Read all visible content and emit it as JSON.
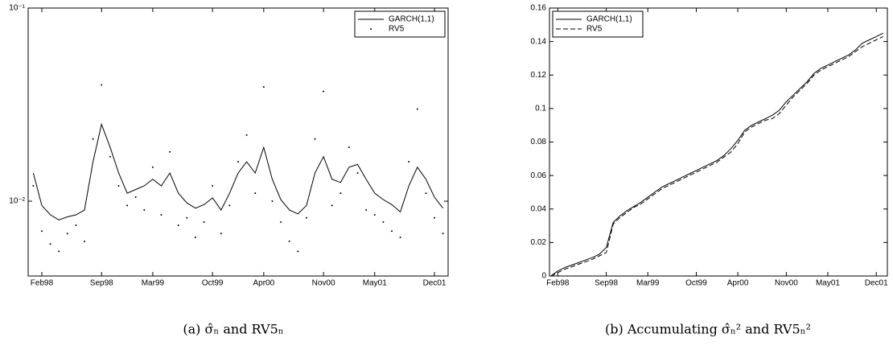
{
  "chart_data": [
    {
      "type": "line",
      "yscale": "log",
      "legend": "upper right",
      "caption": "(a) σ̂ₙ and RV5ₙ",
      "x": [
        0,
        1,
        2,
        3,
        4,
        5,
        6,
        7,
        8,
        9,
        10,
        11,
        12,
        13,
        14,
        15,
        16,
        17,
        18,
        19,
        20,
        21,
        22,
        23,
        24,
        25,
        26,
        27,
        28,
        29,
        30,
        31,
        32,
        33,
        34,
        35,
        36,
        37,
        38,
        39,
        40,
        41,
        42,
        43,
        44,
        45,
        46,
        47,
        48
      ],
      "xlim": [
        -0.6,
        48.6
      ],
      "xticks": [
        {
          "value": 1,
          "label": "Feb98"
        },
        {
          "value": 8,
          "label": "Sep98"
        },
        {
          "value": 14,
          "label": "Mar99"
        },
        {
          "value": 21,
          "label": "Oct99"
        },
        {
          "value": 27,
          "label": "Apr00"
        },
        {
          "value": 34,
          "label": "Nov00"
        },
        {
          "value": 40,
          "label": "May01"
        },
        {
          "value": 47,
          "label": "Dec01"
        }
      ],
      "ylim": [
        0.0041,
        0.1
      ],
      "yticks": [
        {
          "value": 0.01,
          "label": "10⁻²"
        },
        {
          "value": 0.1,
          "label": "10⁻¹"
        }
      ],
      "series": [
        {
          "name": "GARCH(1,1)",
          "kind": "line",
          "style": "solid",
          "color": "#000000",
          "values": [
            0.014,
            0.0095,
            0.0085,
            0.008,
            0.0083,
            0.0085,
            0.009,
            0.016,
            0.025,
            0.019,
            0.014,
            0.011,
            0.0115,
            0.012,
            0.013,
            0.012,
            0.014,
            0.011,
            0.0098,
            0.0092,
            0.0096,
            0.0104,
            0.009,
            0.011,
            0.014,
            0.016,
            0.014,
            0.019,
            0.013,
            0.0102,
            0.009,
            0.0086,
            0.0095,
            0.014,
            0.017,
            0.013,
            0.0125,
            0.015,
            0.0155,
            0.013,
            0.011,
            0.0102,
            0.0096,
            0.0088,
            0.012,
            0.015,
            0.013,
            0.0105,
            0.0092
          ]
        },
        {
          "name": "RV5",
          "kind": "scatter",
          "style": "dot",
          "color": "#000000",
          "values": [
            0.012,
            0.007,
            0.006,
            0.0055,
            0.0068,
            0.0075,
            0.0062,
            0.021,
            0.04,
            0.017,
            0.012,
            0.0095,
            0.0105,
            0.009,
            0.015,
            0.0085,
            0.018,
            0.0075,
            0.0082,
            0.0065,
            0.0078,
            0.012,
            0.0068,
            0.0095,
            0.016,
            0.022,
            0.011,
            0.039,
            0.01,
            0.0078,
            0.0062,
            0.0055,
            0.0082,
            0.021,
            0.037,
            0.0095,
            0.011,
            0.019,
            0.014,
            0.009,
            0.0085,
            0.0078,
            0.007,
            0.0065,
            0.016,
            0.03,
            0.011,
            0.0082,
            0.0068
          ]
        }
      ]
    },
    {
      "type": "line",
      "yscale": "linear",
      "legend": "upper left",
      "caption": "(b) Accumulating σ̂ₙ² and RV5ₙ²",
      "x": [
        0,
        1,
        2,
        3,
        4,
        5,
        6,
        7,
        8,
        9,
        10,
        11,
        12,
        13,
        14,
        15,
        16,
        17,
        18,
        19,
        20,
        21,
        22,
        23,
        24,
        25,
        26,
        27,
        28,
        29,
        30,
        31,
        32,
        33,
        34,
        35,
        36,
        37,
        38,
        39,
        40,
        41,
        42,
        43,
        44,
        45,
        46,
        47,
        48
      ],
      "xlim": [
        -0.2,
        48.6
      ],
      "xticks": [
        {
          "value": 1,
          "label": "Feb98"
        },
        {
          "value": 8,
          "label": "Sep98"
        },
        {
          "value": 14,
          "label": "Mar99"
        },
        {
          "value": 21,
          "label": "Oct99"
        },
        {
          "value": 27,
          "label": "Apr00"
        },
        {
          "value": 34,
          "label": "Nov00"
        },
        {
          "value": 40,
          "label": "May01"
        },
        {
          "value": 47,
          "label": "Dec01"
        }
      ],
      "ylim": [
        0,
        0.16
      ],
      "yticks": [
        0,
        0.02,
        0.04,
        0.06,
        0.08,
        0.1,
        0.12,
        0.14,
        0.16
      ],
      "series": [
        {
          "name": "GARCH(1,1)",
          "kind": "line",
          "style": "solid",
          "color": "#000000",
          "values": [
            0,
            0.003,
            0.005,
            0.0065,
            0.008,
            0.0095,
            0.011,
            0.013,
            0.017,
            0.032,
            0.036,
            0.039,
            0.0415,
            0.044,
            0.047,
            0.05,
            0.053,
            0.055,
            0.057,
            0.059,
            0.061,
            0.063,
            0.065,
            0.067,
            0.069,
            0.072,
            0.076,
            0.081,
            0.087,
            0.09,
            0.092,
            0.094,
            0.096,
            0.099,
            0.104,
            0.108,
            0.112,
            0.116,
            0.121,
            0.124,
            0.126,
            0.128,
            0.13,
            0.132,
            0.135,
            0.139,
            0.141,
            0.143,
            0.145
          ]
        },
        {
          "name": "RV5",
          "kind": "line",
          "style": "dashed",
          "color": "#000000",
          "values": [
            0,
            0.002,
            0.004,
            0.0055,
            0.007,
            0.0085,
            0.01,
            0.012,
            0.014,
            0.031,
            0.035,
            0.038,
            0.041,
            0.043,
            0.046,
            0.049,
            0.052,
            0.054,
            0.056,
            0.058,
            0.06,
            0.062,
            0.064,
            0.066,
            0.068,
            0.071,
            0.074,
            0.079,
            0.086,
            0.089,
            0.091,
            0.093,
            0.094,
            0.097,
            0.102,
            0.107,
            0.111,
            0.115,
            0.12,
            0.123,
            0.125,
            0.127,
            0.129,
            0.131,
            0.134,
            0.137,
            0.139,
            0.141,
            0.143
          ]
        }
      ]
    }
  ]
}
